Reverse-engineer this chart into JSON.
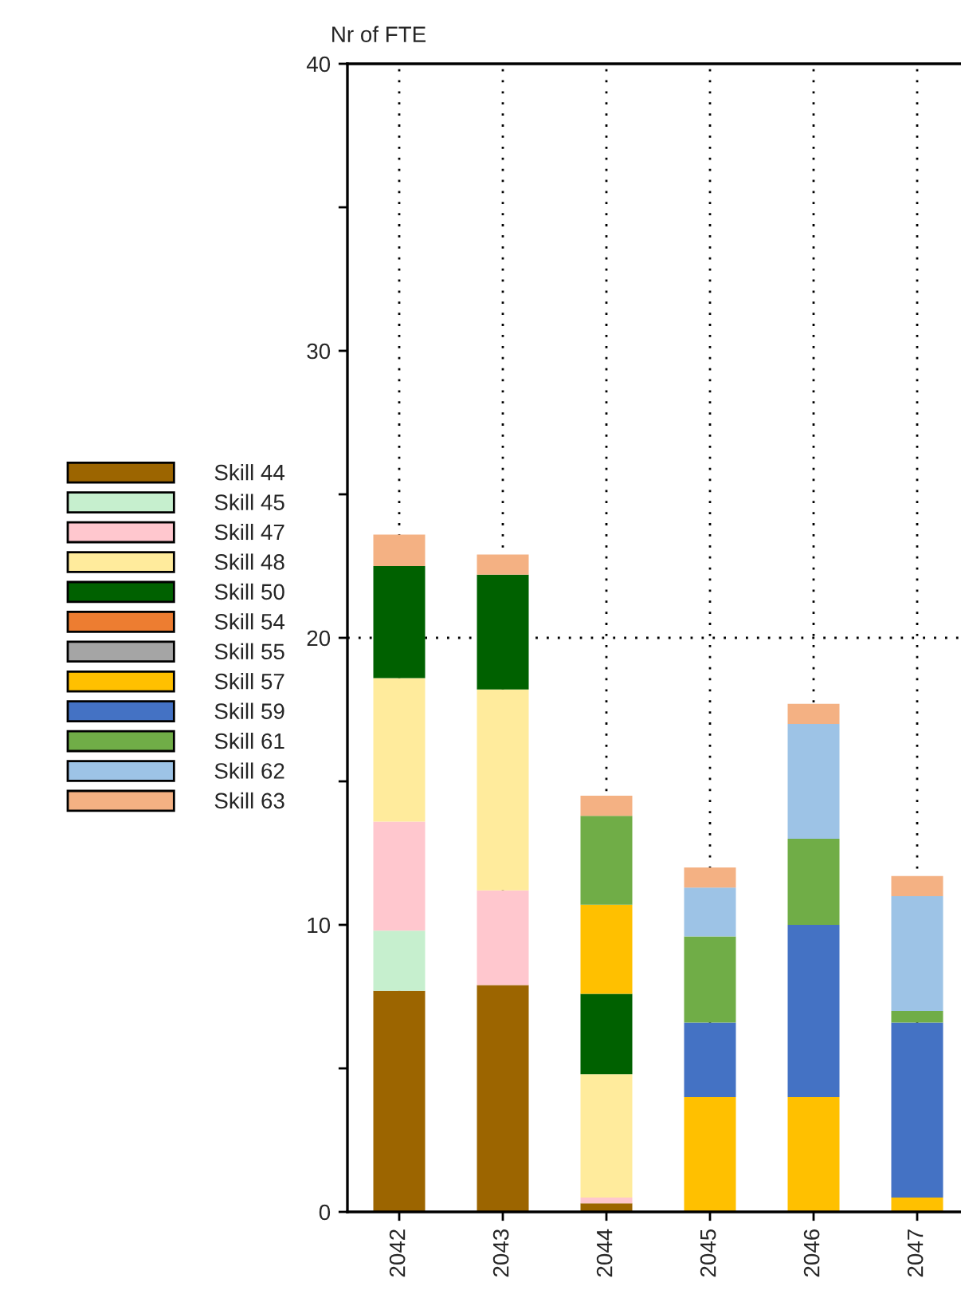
{
  "chart_data": {
    "type": "bar",
    "stacked": true,
    "ylabel": "Nr of FTE",
    "categories": [
      "2042",
      "2043",
      "2044",
      "2045",
      "2046",
      "2047"
    ],
    "series": [
      {
        "name": "Skill 44",
        "color": "#9c6500",
        "values": [
          7.7,
          7.9,
          0.3,
          0,
          0,
          0
        ]
      },
      {
        "name": "Skill 45",
        "color": "#c6efce",
        "values": [
          2.1,
          0,
          0,
          0,
          0,
          0
        ]
      },
      {
        "name": "Skill 47",
        "color": "#ffc7ce",
        "values": [
          3.8,
          3.3,
          0.2,
          0,
          0,
          0
        ]
      },
      {
        "name": "Skill 48",
        "color": "#ffeb9c",
        "values": [
          5.0,
          7.0,
          4.3,
          0,
          0,
          0
        ]
      },
      {
        "name": "Skill 50",
        "color": "#006100",
        "values": [
          3.9,
          4.0,
          2.8,
          0,
          0,
          0
        ]
      },
      {
        "name": "Skill 54",
        "color": "#ed7d31",
        "values": [
          0,
          0,
          0,
          0,
          0,
          0
        ]
      },
      {
        "name": "Skill 55",
        "color": "#a5a5a5",
        "values": [
          0,
          0,
          0,
          0,
          0,
          0
        ]
      },
      {
        "name": "Skill 57",
        "color": "#ffc000",
        "values": [
          0,
          0,
          3.1,
          4.0,
          4.0,
          0.5
        ]
      },
      {
        "name": "Skill 59",
        "color": "#4472c4",
        "values": [
          0,
          0,
          0,
          2.6,
          6.0,
          6.1
        ]
      },
      {
        "name": "Skill 61",
        "color": "#70ad47",
        "values": [
          0,
          0,
          3.1,
          3.0,
          3.0,
          0.4
        ]
      },
      {
        "name": "Skill 62",
        "color": "#9dc3e6",
        "values": [
          0,
          0,
          0,
          1.7,
          4.0,
          4.0
        ]
      },
      {
        "name": "Skill 63",
        "color": "#f4b183",
        "values": [
          1.1,
          0.7,
          0.7,
          0.7,
          0.7,
          0.7
        ]
      }
    ],
    "ylim": [
      0,
      40
    ],
    "yticks": [
      0,
      {
        "value": 5,
        "label": null
      },
      10,
      {
        "value": 15,
        "label": null
      },
      20,
      {
        "value": 25,
        "label": null
      },
      30,
      {
        "value": 35,
        "label": null
      },
      40
    ],
    "grid": "x",
    "ref_lines": [
      {
        "axis": "y",
        "value": 20,
        "label": null,
        "line_style": "dotted"
      }
    ],
    "legend": "left"
  }
}
